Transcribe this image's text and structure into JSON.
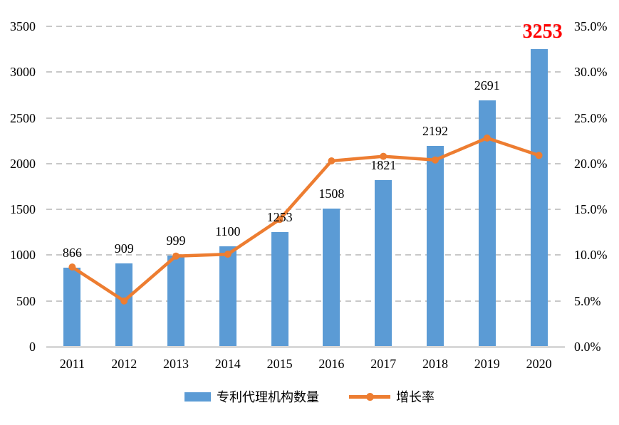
{
  "chart_data": {
    "type": "bar+line",
    "title": "",
    "categories": [
      "2011",
      "2012",
      "2013",
      "2014",
      "2015",
      "2016",
      "2017",
      "2018",
      "2019",
      "2020"
    ],
    "series": [
      {
        "name": "专利代理机构数量",
        "type": "bar",
        "axis": "left",
        "color": "#5b9bd5",
        "values": [
          866,
          909,
          999,
          1100,
          1253,
          1508,
          1821,
          2192,
          2691,
          3253
        ]
      },
      {
        "name": "增长率",
        "type": "line",
        "axis": "right",
        "color": "#ed7d31",
        "values": [
          8.7,
          5.0,
          9.9,
          10.1,
          13.9,
          20.3,
          20.8,
          20.4,
          22.8,
          20.9
        ]
      }
    ],
    "axis_left": {
      "min": 0,
      "max": 3500,
      "step": 500,
      "ticks": [
        "0",
        "500",
        "1000",
        "1500",
        "2000",
        "2500",
        "3000",
        "3500"
      ]
    },
    "axis_right": {
      "min": 0,
      "max": 35,
      "step": 5,
      "ticks": [
        "0.0%",
        "5.0%",
        "10.0%",
        "15.0%",
        "20.0%",
        "25.0%",
        "30.0%",
        "35.0%"
      ]
    },
    "data_labels": {
      "show_on_bars": true,
      "highlight_index": 9,
      "highlight_color": "#ff0000"
    },
    "grid": "horizontal-dashed",
    "legend_position": "bottom"
  },
  "colors": {
    "bar": "#5b9bd5",
    "line": "#ed7d31",
    "highlight": "#ff0000",
    "gridline": "#c8c8c8",
    "baseline": "#d9d9d9",
    "text": "#000000"
  }
}
